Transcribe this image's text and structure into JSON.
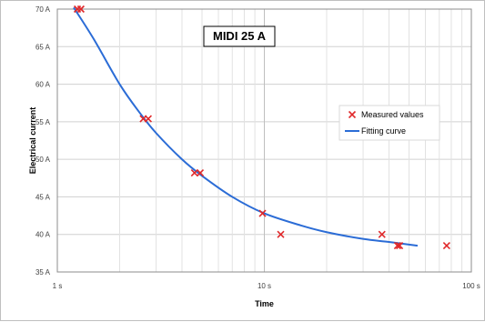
{
  "chart_data": {
    "type": "scatter",
    "title": "MIDI 25 A",
    "xlabel": "Time",
    "ylabel": "Electrical current",
    "x_scale": "log",
    "xlim": [
      1,
      100
    ],
    "ylim": [
      35,
      70
    ],
    "x_ticks": [
      {
        "value": 1,
        "label": "1 s"
      },
      {
        "value": 10,
        "label": "10 s"
      },
      {
        "value": 100,
        "label": "100 s"
      }
    ],
    "y_ticks": [
      {
        "value": 70,
        "label": "70 A"
      },
      {
        "value": 65,
        "label": "65 A"
      },
      {
        "value": 60,
        "label": "60 A"
      },
      {
        "value": 55,
        "label": "55 A"
      },
      {
        "value": 50,
        "label": "50 A"
      },
      {
        "value": 45,
        "label": "45 A"
      },
      {
        "value": 40,
        "label": "40 A"
      },
      {
        "value": 35,
        "label": "35 A"
      }
    ],
    "grid": true,
    "legend_position": "right",
    "series": [
      {
        "name": "Measured values",
        "kind": "markers",
        "marker": "x",
        "color": "#e0282a",
        "points": [
          {
            "x": 1.25,
            "y": 70.0
          },
          {
            "x": 1.3,
            "y": 70.0
          },
          {
            "x": 2.6,
            "y": 55.4
          },
          {
            "x": 2.75,
            "y": 55.4
          },
          {
            "x": 4.6,
            "y": 48.2
          },
          {
            "x": 4.9,
            "y": 48.2
          },
          {
            "x": 9.8,
            "y": 42.8
          },
          {
            "x": 12,
            "y": 40.0
          },
          {
            "x": 37,
            "y": 40.0
          },
          {
            "x": 44,
            "y": 38.5
          },
          {
            "x": 45,
            "y": 38.5
          },
          {
            "x": 76,
            "y": 38.5
          }
        ]
      },
      {
        "name": "Fitting curve",
        "kind": "line",
        "color": "#2b6cd6",
        "points": [
          {
            "x": 1.2,
            "y": 70.2
          },
          {
            "x": 1.5,
            "y": 66.0
          },
          {
            "x": 2.0,
            "y": 60.0
          },
          {
            "x": 2.5,
            "y": 56.2
          },
          {
            "x": 3.0,
            "y": 53.5
          },
          {
            "x": 4.0,
            "y": 50.0
          },
          {
            "x": 5.0,
            "y": 47.8
          },
          {
            "x": 7.0,
            "y": 45.0
          },
          {
            "x": 10.0,
            "y": 42.8
          },
          {
            "x": 15.0,
            "y": 41.2
          },
          {
            "x": 20.0,
            "y": 40.3
          },
          {
            "x": 30.0,
            "y": 39.4
          },
          {
            "x": 40.0,
            "y": 39.0
          },
          {
            "x": 55.0,
            "y": 38.5
          }
        ]
      }
    ]
  }
}
